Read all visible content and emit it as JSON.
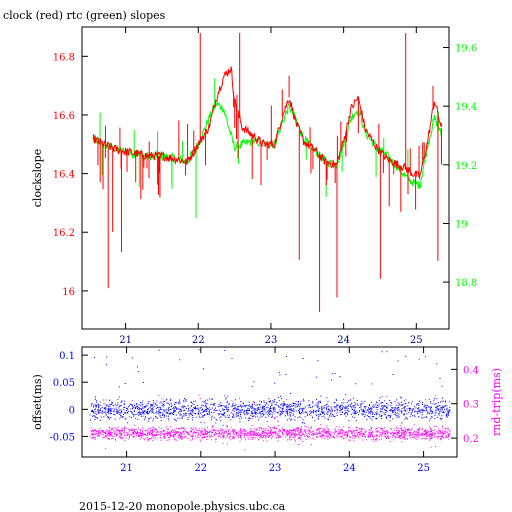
{
  "chart_data": [
    {
      "type": "line",
      "title": "clock (red) rtc (green) slopes",
      "ylabel": "clockslope",
      "xlim": [
        20.4,
        25.45
      ],
      "ylim": [
        15.87,
        16.9
      ],
      "y2lim": [
        18.64,
        19.67
      ],
      "x_ticks": [
        21,
        22,
        23,
        24,
        25
      ],
      "y_ticks": [
        16,
        16.2,
        16.4,
        16.6,
        16.8
      ],
      "y2_ticks": [
        18.8,
        19,
        19.2,
        19.4,
        19.6
      ],
      "colors": {
        "clock": "#ff0000",
        "rtc": "#00ff00"
      },
      "series": [
        {
          "color": "#ff0000",
          "x": [
            20.55,
            20.7,
            20.9,
            21.1,
            21.3,
            21.5,
            21.7,
            21.85,
            22.0,
            22.15,
            22.25,
            22.35,
            22.45,
            22.5,
            22.6,
            22.75,
            22.9,
            23.05,
            23.15,
            23.25,
            23.35,
            23.45,
            23.6,
            23.75,
            23.9,
            24.0,
            24.1,
            24.2,
            24.3,
            24.45,
            24.6,
            24.75,
            24.85,
            24.95,
            25.05,
            25.15,
            25.25,
            25.35
          ],
          "y": [
            16.52,
            16.5,
            16.48,
            16.47,
            16.46,
            16.46,
            16.45,
            16.44,
            16.5,
            16.56,
            16.66,
            16.73,
            16.76,
            16.65,
            16.56,
            16.53,
            16.5,
            16.5,
            16.59,
            16.66,
            16.57,
            16.51,
            16.48,
            16.44,
            16.43,
            16.51,
            16.62,
            16.66,
            16.55,
            16.49,
            16.45,
            16.43,
            16.42,
            16.4,
            16.39,
            16.5,
            16.65,
            16.55
          ]
        },
        {
          "color": "#00ff00",
          "axis": "right",
          "x": [
            20.55,
            20.7,
            20.9,
            21.1,
            21.3,
            21.5,
            21.7,
            21.85,
            22.0,
            22.15,
            22.25,
            22.35,
            22.45,
            22.5,
            22.6,
            22.75,
            22.9,
            23.05,
            23.15,
            23.25,
            23.35,
            23.45,
            23.6,
            23.75,
            23.9,
            24.0,
            24.1,
            24.2,
            24.3,
            24.45,
            24.6,
            24.75,
            24.85,
            24.95,
            25.05,
            25.15,
            25.25,
            25.35
          ],
          "y": [
            19.29,
            19.27,
            19.25,
            19.24,
            19.23,
            19.23,
            19.22,
            19.21,
            19.27,
            19.36,
            19.41,
            19.39,
            19.3,
            19.26,
            19.27,
            19.28,
            19.27,
            19.27,
            19.34,
            19.4,
            19.35,
            19.29,
            19.25,
            19.21,
            19.2,
            19.27,
            19.36,
            19.39,
            19.31,
            19.26,
            19.23,
            19.19,
            19.16,
            19.14,
            19.13,
            19.26,
            19.36,
            19.3
          ]
        }
      ]
    },
    {
      "type": "scatter",
      "ylabel": "offset(ms)",
      "y2label": "rnd-trip(ms)",
      "xlim": [
        20.4,
        25.45
      ],
      "ylim": [
        -0.088,
        0.115
      ],
      "y2lim": [
        0.145,
        0.465
      ],
      "x_ticks": [
        21,
        22,
        23,
        24,
        25
      ],
      "y_ticks": [
        -0.05,
        0,
        0.05,
        0.1
      ],
      "y2_ticks": [
        0.2,
        0.3,
        0.4
      ],
      "colors": {
        "offset": "#0000ff",
        "round_trip": "#ff00ff"
      },
      "series": [
        {
          "color": "#0000ff",
          "x_range": [
            20.5,
            25.35
          ],
          "y_center": 0.0,
          "y_spread": 0.02
        },
        {
          "color": "#ff00ff",
          "axis": "right",
          "x_range": [
            20.5,
            25.35
          ],
          "y_center": 0.215,
          "y_spread": 0.02
        }
      ]
    }
  ],
  "footer": "2015-12-20 monopole.physics.ubc.ca"
}
